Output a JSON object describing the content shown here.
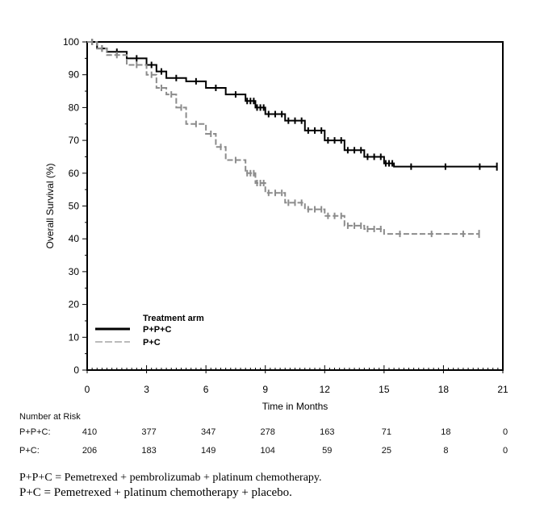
{
  "chart_data": {
    "type": "line",
    "subtype": "kaplan-meier",
    "xlabel": "Time in Months",
    "ylabel": "Overall Survival (%)",
    "xlim": [
      0,
      21
    ],
    "ylim": [
      0,
      100
    ],
    "xticks": [
      0,
      3,
      6,
      9,
      12,
      15,
      18,
      21
    ],
    "yticks": [
      0,
      10,
      20,
      30,
      40,
      50,
      60,
      70,
      80,
      90,
      100
    ],
    "grid": false,
    "legend": {
      "title": "Treatment arm",
      "placement": "bottom-left"
    },
    "series": [
      {
        "name": "P+P+C",
        "color": "#000000",
        "style": "solid",
        "x": [
          0,
          0.5,
          1,
          2,
          3,
          3.5,
          4,
          5,
          6,
          7,
          8,
          8.5,
          9,
          10,
          11,
          12,
          13,
          14,
          15,
          15.5,
          20.7
        ],
        "y": [
          100,
          98,
          97,
          95,
          93,
          91,
          89,
          88,
          86,
          84,
          82,
          80,
          78,
          76,
          73,
          70,
          67,
          65,
          63,
          62,
          62
        ]
      },
      {
        "name": "P+C",
        "color": "#8c8c8c",
        "style": "dashed",
        "x": [
          0,
          0.5,
          1,
          2,
          3,
          3.5,
          4,
          4.5,
          5,
          6,
          6.5,
          7,
          8,
          8.5,
          9,
          10,
          11,
          12,
          13,
          14,
          15,
          19.8
        ],
        "y": [
          100,
          98,
          96,
          93,
          90,
          86,
          84,
          80,
          75,
          72,
          68,
          64,
          60,
          57,
          54,
          51,
          49,
          47,
          44,
          43,
          41.5,
          41.5
        ]
      }
    ]
  },
  "risk_table": {
    "title": "Number at Risk",
    "rows": [
      {
        "label": "P+P+C:",
        "values": [
          "410",
          "377",
          "347",
          "278",
          "163",
          "71",
          "18",
          "0"
        ]
      },
      {
        "label": "P+C:",
        "values": [
          "206",
          "183",
          "149",
          "104",
          "59",
          "25",
          "8",
          "0"
        ]
      }
    ]
  },
  "footnotes": [
    "P+P+C = Pemetrexed + pembrolizumab + platinum chemotherapy.",
    "P+C = Pemetrexed + platinum chemotherapy + placebo."
  ]
}
